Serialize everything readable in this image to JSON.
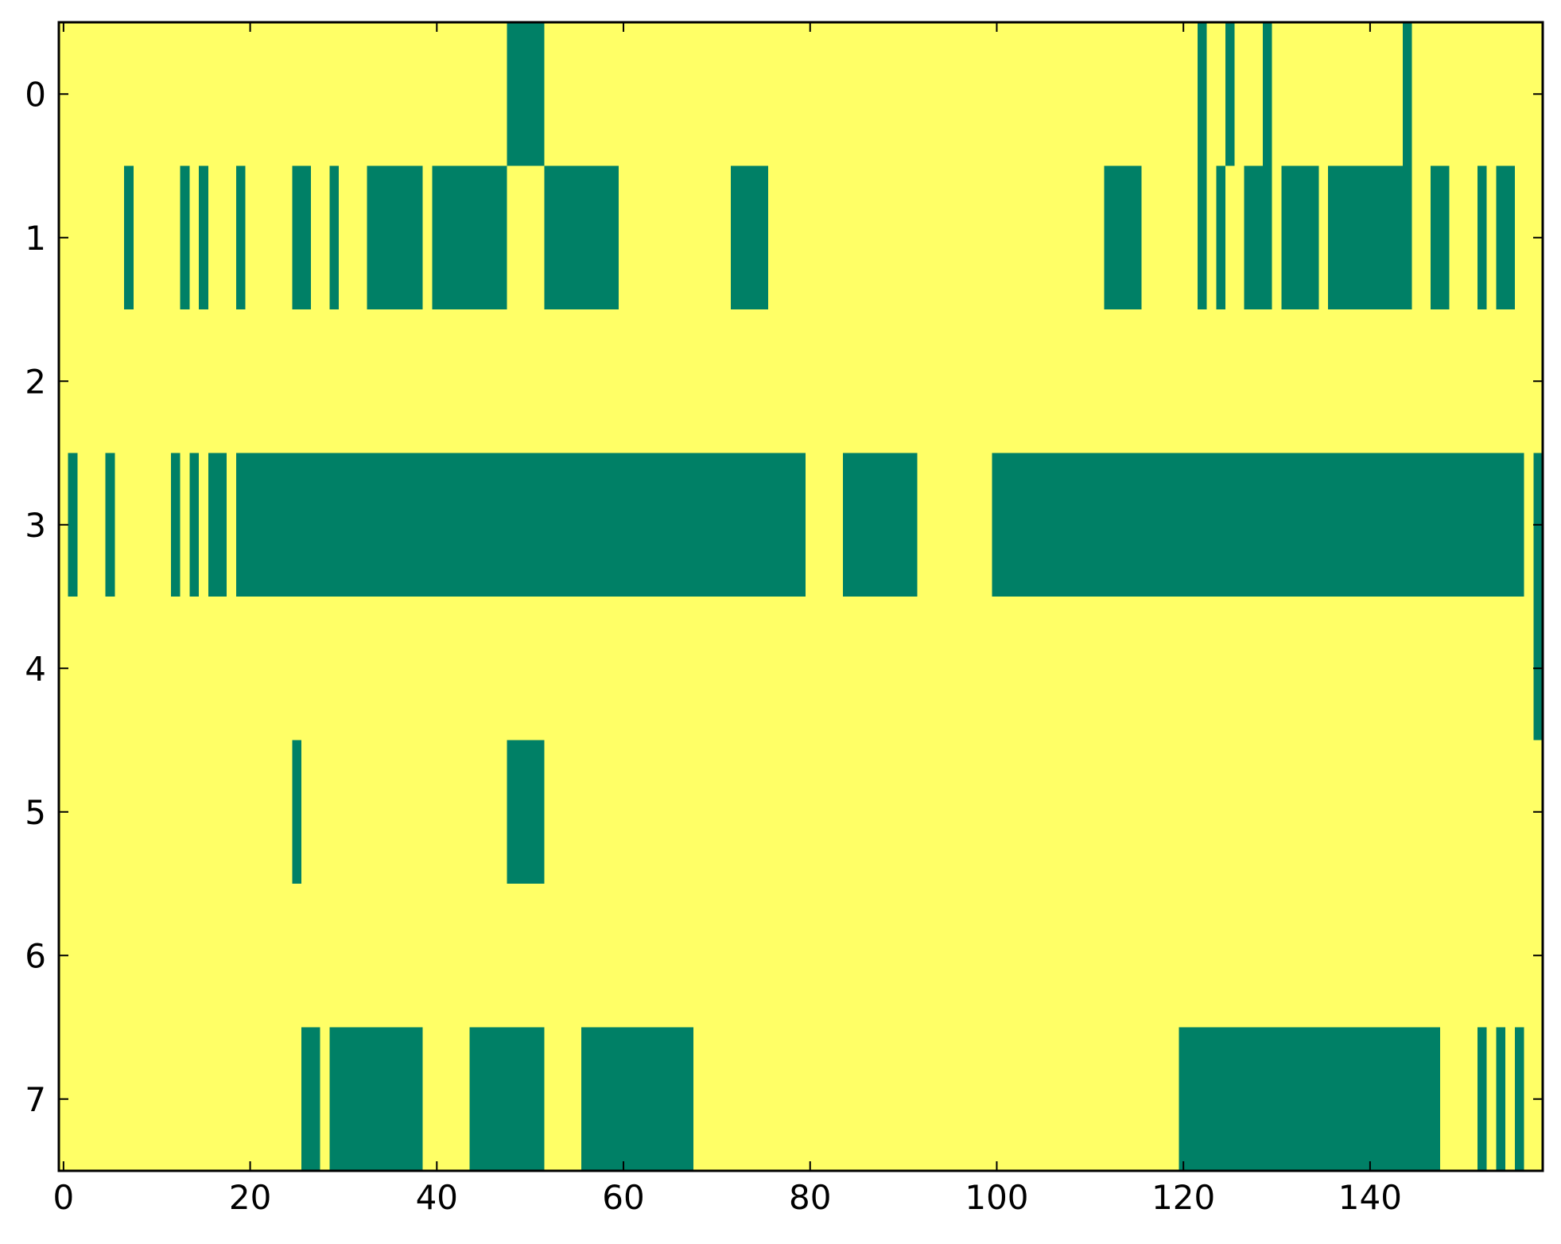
{
  "chart_data": {
    "type": "heatmap",
    "title": "",
    "xlabel": "",
    "ylabel": "",
    "n_cols": 159,
    "n_rows": 8,
    "xlim": [
      -0.5,
      158.5
    ],
    "ylim": [
      7.5,
      -0.5
    ],
    "x_ticks": [
      0,
      20,
      40,
      60,
      80,
      100,
      120,
      140
    ],
    "x_tick_labels": [
      "0",
      "20",
      "40",
      "60",
      "80",
      "100",
      "120",
      "140"
    ],
    "y_ticks": [
      0,
      1,
      2,
      3,
      4,
      5,
      6,
      7
    ],
    "y_tick_labels": [
      "0",
      "1",
      "2",
      "3",
      "4",
      "5",
      "6",
      "7"
    ],
    "colors": {
      "background_value": "#ffff66",
      "filled_value": "#008066"
    },
    "filled_runs_by_row": [
      [
        [
          48,
          51
        ],
        [
          122,
          122
        ],
        [
          125,
          125
        ],
        [
          129,
          129
        ],
        [
          144,
          144
        ]
      ],
      [
        [
          7,
          7
        ],
        [
          13,
          13
        ],
        [
          15,
          15
        ],
        [
          19,
          19
        ],
        [
          25,
          26
        ],
        [
          29,
          29
        ],
        [
          33,
          38
        ],
        [
          40,
          47
        ],
        [
          52,
          59
        ],
        [
          72,
          75
        ],
        [
          112,
          115
        ],
        [
          122,
          122
        ],
        [
          124,
          124
        ],
        [
          127,
          129
        ],
        [
          131,
          134
        ],
        [
          136,
          144
        ],
        [
          147,
          148
        ],
        [
          152,
          152
        ],
        [
          154,
          155
        ]
      ],
      [],
      [
        [
          1,
          1
        ],
        [
          5,
          5
        ],
        [
          12,
          12
        ],
        [
          14,
          14
        ],
        [
          16,
          17
        ],
        [
          19,
          79
        ],
        [
          84,
          91
        ],
        [
          100,
          156
        ],
        [
          158,
          158
        ]
      ],
      [
        [
          158,
          158
        ]
      ],
      [
        [
          25,
          25
        ],
        [
          48,
          51
        ]
      ],
      [],
      [
        [
          26,
          27
        ],
        [
          29,
          38
        ],
        [
          44,
          51
        ],
        [
          56,
          67
        ],
        [
          120,
          147
        ],
        [
          152,
          152
        ],
        [
          154,
          154
        ],
        [
          156,
          156
        ]
      ]
    ]
  }
}
